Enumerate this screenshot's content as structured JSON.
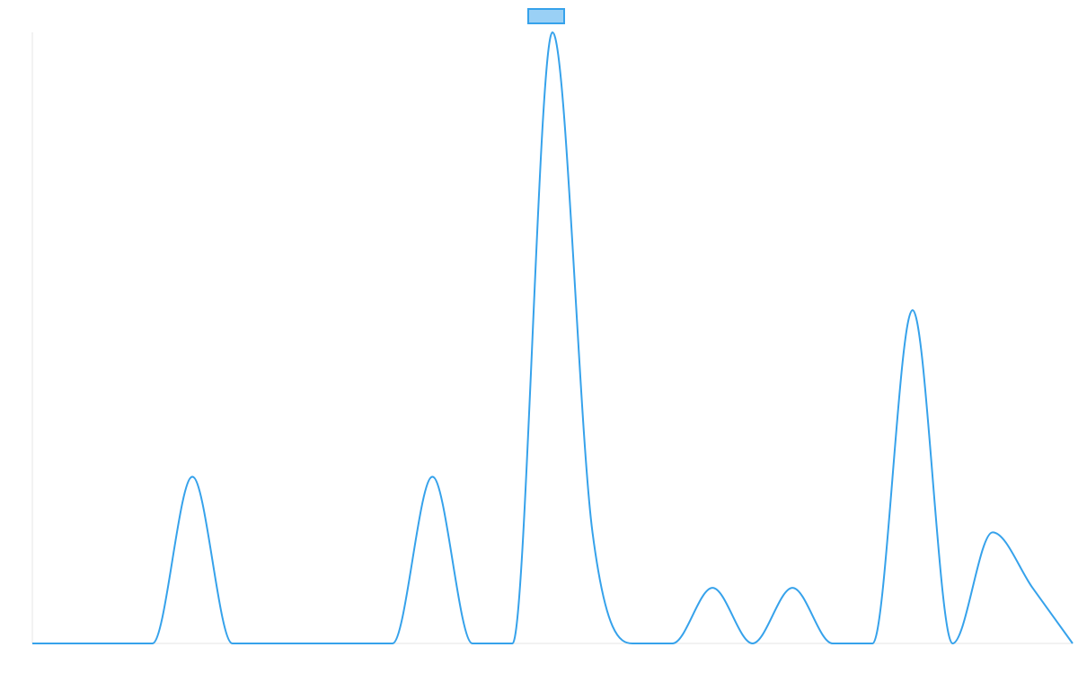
{
  "chart_data": {
    "type": "line",
    "title": "",
    "xlabel": "",
    "ylabel": "",
    "x": [
      0,
      1,
      2,
      3,
      4,
      5,
      6,
      7,
      8,
      9,
      10,
      11,
      12,
      13,
      14,
      15,
      16,
      17,
      18,
      19,
      20,
      21,
      22,
      23,
      24,
      25,
      26
    ],
    "series": [
      {
        "name": "",
        "color": "#36a2eb",
        "fill": "#9ad0f5",
        "values": [
          0,
          0,
          0,
          0,
          3,
          0,
          0,
          0,
          0,
          0,
          3,
          0,
          0,
          11,
          2,
          0,
          0,
          1,
          0,
          1,
          0,
          0,
          6,
          0,
          2,
          1,
          0
        ]
      }
    ],
    "ylim": [
      0,
      11
    ],
    "grid": false,
    "legend": "top-center"
  }
}
